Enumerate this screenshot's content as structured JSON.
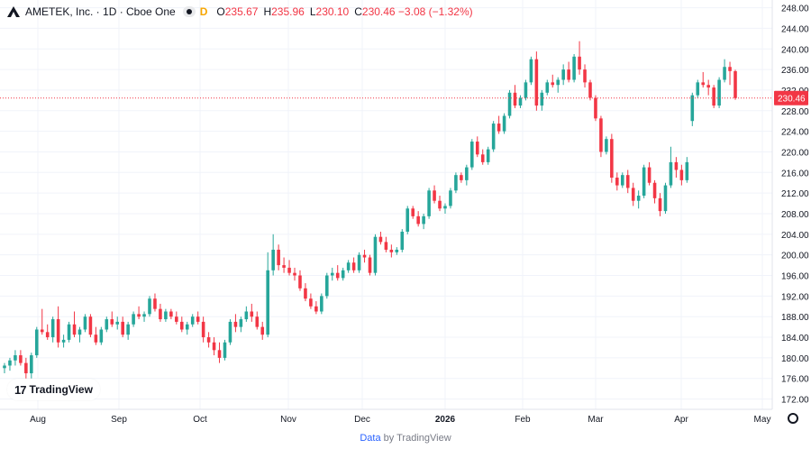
{
  "header": {
    "symbol": "AMETEK, Inc. · 1D · Cboe One",
    "indicator": "D",
    "o_label": "O",
    "o_value": "235.67",
    "h_label": "H",
    "h_value": "235.96",
    "l_label": "L",
    "l_value": "230.10",
    "c_label": "C",
    "c_value": "230.46 −3.08 (−1.32%)"
  },
  "footer": {
    "link": "Data",
    "rest": " by TradingView"
  },
  "logo_text": "TradingView",
  "colors": {
    "up": "#26a69a",
    "down": "#f23645",
    "grid": "#f0f3fa",
    "last_price": "#f23645"
  },
  "chart_data": {
    "type": "candlestick",
    "y_ticks": [
      "248.00",
      "244.00",
      "240.00",
      "236.00",
      "232.00",
      "228.00",
      "224.00",
      "220.00",
      "216.00",
      "212.00",
      "208.00",
      "204.00",
      "200.00",
      "196.00",
      "192.00",
      "188.00",
      "184.00",
      "180.00",
      "176.00",
      "172.00"
    ],
    "x_ticks": [
      "Aug",
      "Sep",
      "Oct",
      "Nov",
      "Dec",
      "2026",
      "Feb",
      "Mar",
      "Apr",
      "May"
    ],
    "ylim": [
      170.0,
      249.5
    ],
    "last_price": 230.46,
    "last_price_label": "230.46",
    "candles": [
      [
        178.0,
        179.0,
        177.0,
        178.5
      ],
      [
        178.5,
        180.0,
        177.5,
        179.5
      ],
      [
        179.5,
        181.5,
        178.5,
        180.5
      ],
      [
        180.5,
        181.5,
        178.5,
        179.0
      ],
      [
        179.0,
        180.0,
        176.0,
        177.0
      ],
      [
        177.0,
        181.0,
        176.0,
        180.5
      ],
      [
        180.5,
        186.0,
        180.0,
        185.5
      ],
      [
        185.5,
        189.5,
        184.5,
        185.0
      ],
      [
        185.0,
        186.5,
        183.5,
        184.0
      ],
      [
        184.0,
        188.0,
        183.0,
        187.5
      ],
      [
        187.5,
        190.0,
        182.0,
        183.0
      ],
      [
        183.0,
        184.5,
        182.0,
        183.5
      ],
      [
        183.5,
        187.0,
        183.0,
        186.5
      ],
      [
        186.5,
        189.0,
        184.0,
        184.5
      ],
      [
        184.5,
        186.0,
        183.0,
        185.5
      ],
      [
        185.5,
        188.5,
        185.0,
        188.0
      ],
      [
        188.0,
        188.5,
        184.0,
        184.5
      ],
      [
        184.5,
        186.0,
        182.5,
        183.0
      ],
      [
        183.0,
        186.0,
        182.5,
        185.5
      ],
      [
        185.5,
        188.0,
        185.0,
        187.5
      ],
      [
        187.5,
        189.0,
        186.0,
        186.5
      ],
      [
        186.5,
        188.0,
        185.5,
        187.0
      ],
      [
        187.0,
        188.0,
        184.0,
        184.5
      ],
      [
        184.5,
        187.0,
        183.5,
        186.5
      ],
      [
        186.5,
        189.0,
        186.0,
        188.5
      ],
      [
        188.5,
        190.0,
        187.5,
        188.0
      ],
      [
        188.0,
        189.0,
        187.0,
        188.5
      ],
      [
        188.5,
        192.0,
        188.0,
        191.5
      ],
      [
        191.5,
        192.5,
        189.0,
        189.5
      ],
      [
        189.5,
        190.5,
        187.0,
        187.5
      ],
      [
        187.5,
        189.5,
        187.0,
        189.0
      ],
      [
        189.0,
        189.5,
        187.5,
        188.0
      ],
      [
        188.0,
        189.0,
        186.5,
        187.0
      ],
      [
        187.0,
        188.0,
        185.0,
        185.5
      ],
      [
        185.5,
        187.0,
        184.5,
        186.5
      ],
      [
        186.5,
        188.5,
        186.0,
        188.0
      ],
      [
        188.0,
        189.0,
        186.5,
        187.0
      ],
      [
        187.0,
        188.0,
        183.0,
        184.0
      ],
      [
        184.0,
        185.0,
        182.0,
        183.0
      ],
      [
        183.0,
        184.0,
        180.5,
        181.5
      ],
      [
        181.5,
        183.0,
        179.0,
        180.0
      ],
      [
        180.0,
        183.5,
        179.5,
        183.0
      ],
      [
        183.0,
        187.5,
        182.5,
        187.0
      ],
      [
        187.0,
        188.5,
        185.0,
        186.0
      ],
      [
        186.0,
        188.0,
        185.0,
        187.5
      ],
      [
        187.5,
        190.0,
        187.0,
        189.0
      ],
      [
        189.0,
        190.5,
        187.0,
        188.0
      ],
      [
        188.0,
        189.0,
        185.5,
        186.0
      ],
      [
        186.0,
        187.0,
        183.5,
        184.5
      ],
      [
        184.5,
        200.5,
        184.0,
        197.0
      ],
      [
        197.0,
        204.0,
        196.0,
        201.0
      ],
      [
        201.0,
        202.0,
        197.0,
        198.0
      ],
      [
        198.0,
        199.5,
        196.5,
        197.5
      ],
      [
        197.5,
        199.0,
        196.0,
        196.5
      ],
      [
        196.5,
        197.5,
        195.0,
        196.0
      ],
      [
        196.0,
        197.0,
        193.0,
        193.5
      ],
      [
        193.5,
        194.5,
        191.0,
        191.5
      ],
      [
        191.5,
        192.5,
        189.5,
        190.0
      ],
      [
        190.0,
        191.0,
        188.5,
        189.0
      ],
      [
        189.0,
        192.5,
        188.5,
        192.0
      ],
      [
        192.0,
        196.5,
        191.5,
        196.0
      ],
      [
        196.0,
        197.5,
        195.0,
        196.5
      ],
      [
        196.5,
        198.0,
        195.0,
        195.5
      ],
      [
        195.5,
        197.5,
        195.0,
        197.0
      ],
      [
        197.0,
        199.0,
        196.5,
        198.5
      ],
      [
        198.5,
        199.5,
        196.5,
        197.0
      ],
      [
        197.0,
        200.5,
        196.5,
        200.0
      ],
      [
        200.0,
        201.0,
        198.5,
        199.5
      ],
      [
        199.5,
        200.0,
        196.0,
        196.5
      ],
      [
        196.5,
        204.0,
        196.0,
        203.5
      ],
      [
        203.5,
        204.5,
        202.0,
        202.5
      ],
      [
        202.5,
        203.5,
        200.5,
        201.0
      ],
      [
        201.0,
        202.0,
        199.5,
        200.5
      ],
      [
        200.5,
        201.5,
        200.0,
        201.0
      ],
      [
        201.0,
        205.0,
        200.5,
        204.5
      ],
      [
        204.5,
        209.5,
        204.0,
        209.0
      ],
      [
        209.0,
        209.5,
        207.0,
        207.5
      ],
      [
        207.5,
        208.5,
        205.5,
        206.0
      ],
      [
        206.0,
        208.0,
        205.0,
        207.5
      ],
      [
        207.5,
        213.0,
        207.0,
        212.5
      ],
      [
        212.5,
        213.5,
        210.0,
        210.5
      ],
      [
        210.5,
        211.5,
        208.5,
        209.0
      ],
      [
        209.0,
        210.0,
        208.0,
        209.5
      ],
      [
        209.5,
        213.0,
        209.0,
        212.5
      ],
      [
        212.5,
        216.0,
        212.0,
        215.5
      ],
      [
        215.5,
        216.0,
        214.0,
        214.5
      ],
      [
        214.5,
        217.5,
        213.5,
        217.0
      ],
      [
        217.0,
        222.5,
        216.5,
        222.0
      ],
      [
        222.0,
        223.0,
        219.0,
        219.5
      ],
      [
        219.5,
        220.5,
        217.5,
        218.0
      ],
      [
        218.0,
        221.0,
        217.5,
        220.5
      ],
      [
        220.5,
        226.0,
        220.0,
        225.5
      ],
      [
        225.5,
        227.0,
        223.5,
        224.0
      ],
      [
        224.0,
        227.5,
        223.5,
        227.0
      ],
      [
        227.0,
        232.0,
        226.5,
        231.5
      ],
      [
        231.5,
        233.0,
        228.5,
        229.0
      ],
      [
        229.0,
        231.0,
        228.5,
        230.5
      ],
      [
        230.5,
        234.0,
        230.0,
        233.5
      ],
      [
        233.5,
        238.5,
        233.0,
        238.0
      ],
      [
        238.0,
        239.5,
        228.0,
        229.0
      ],
      [
        229.0,
        232.0,
        228.0,
        231.5
      ],
      [
        231.5,
        234.0,
        231.0,
        233.5
      ],
      [
        233.5,
        235.0,
        232.5,
        233.0
      ],
      [
        233.0,
        234.5,
        231.5,
        234.0
      ],
      [
        234.0,
        237.0,
        233.0,
        236.0
      ],
      [
        236.0,
        237.5,
        233.5,
        234.0
      ],
      [
        234.0,
        239.0,
        233.5,
        238.5
      ],
      [
        238.5,
        241.5,
        235.0,
        236.0
      ],
      [
        236.0,
        237.0,
        232.5,
        233.5
      ],
      [
        233.5,
        234.0,
        230.0,
        230.5
      ],
      [
        230.5,
        231.0,
        226.0,
        226.5
      ],
      [
        226.5,
        227.0,
        219.0,
        220.0
      ],
      [
        220.0,
        223.0,
        219.5,
        222.5
      ],
      [
        222.5,
        223.5,
        214.0,
        215.0
      ],
      [
        215.0,
        216.0,
        212.5,
        213.5
      ],
      [
        213.5,
        216.0,
        213.0,
        215.5
      ],
      [
        215.5,
        216.5,
        212.0,
        213.0
      ],
      [
        213.0,
        214.0,
        209.5,
        210.5
      ],
      [
        210.5,
        212.5,
        209.0,
        211.5
      ],
      [
        211.5,
        217.5,
        211.0,
        217.0
      ],
      [
        217.0,
        218.0,
        213.5,
        214.0
      ],
      [
        214.0,
        214.5,
        210.0,
        211.0
      ],
      [
        211.0,
        212.0,
        207.5,
        208.5
      ],
      [
        208.5,
        214.0,
        208.0,
        213.5
      ],
      [
        213.5,
        221.0,
        213.0,
        218.0
      ],
      [
        218.0,
        219.0,
        215.0,
        216.5
      ],
      [
        216.5,
        217.5,
        213.5,
        214.5
      ],
      [
        214.5,
        219.0,
        214.0,
        218.0
      ],
      [
        226.0,
        231.5,
        225.0,
        231.0
      ],
      [
        231.0,
        234.0,
        230.5,
        233.5
      ],
      [
        233.5,
        235.5,
        232.5,
        233.0
      ],
      [
        233.0,
        234.0,
        231.0,
        232.5
      ],
      [
        232.5,
        233.0,
        228.5,
        229.0
      ],
      [
        229.0,
        234.5,
        228.5,
        234.0
      ],
      [
        234.0,
        238.0,
        233.5,
        236.5
      ],
      [
        236.5,
        237.5,
        233.0,
        235.7
      ],
      [
        235.67,
        235.96,
        230.1,
        230.46
      ]
    ]
  }
}
